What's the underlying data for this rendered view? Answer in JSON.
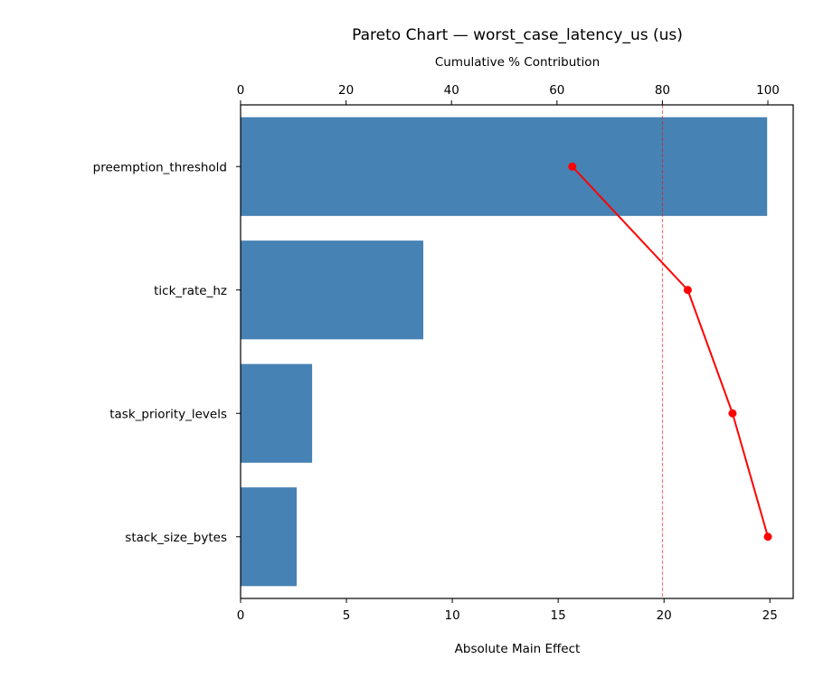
{
  "chart_data": {
    "type": "bar",
    "orientation": "horizontal",
    "title": "Pareto Chart — worst_case_latency_us (us)",
    "xlabel": "Absolute Main Effect",
    "ylabel": "",
    "secondary_xlabel": "Cumulative % Contribution",
    "categories": [
      "preemption_threshold",
      "tick_rate_hz",
      "task_priority_levels",
      "stack_size_bytes"
    ],
    "values": [
      24.87,
      8.63,
      3.38,
      2.65
    ],
    "series": [
      {
        "name": "Absolute Main Effect",
        "type": "bar",
        "axis": "bottom",
        "color": "#4682b4",
        "values": [
          24.87,
          8.63,
          3.38,
          2.65
        ]
      },
      {
        "name": "Cumulative % Contribution",
        "type": "line",
        "axis": "top",
        "color": "#ff0000",
        "values": [
          62.9,
          84.8,
          93.3,
          100.0
        ]
      }
    ],
    "xlim": [
      0,
      26.1
    ],
    "secondary_xlim": [
      0,
      104.8
    ],
    "xticks": [
      0,
      5,
      10,
      15,
      20,
      25
    ],
    "secondary_xticks": [
      0,
      20,
      40,
      60,
      80,
      100
    ],
    "reference_line": {
      "axis": "top",
      "value": 80,
      "style": "dashed",
      "color": "#ff0000"
    },
    "grid": false,
    "legend": null
  }
}
